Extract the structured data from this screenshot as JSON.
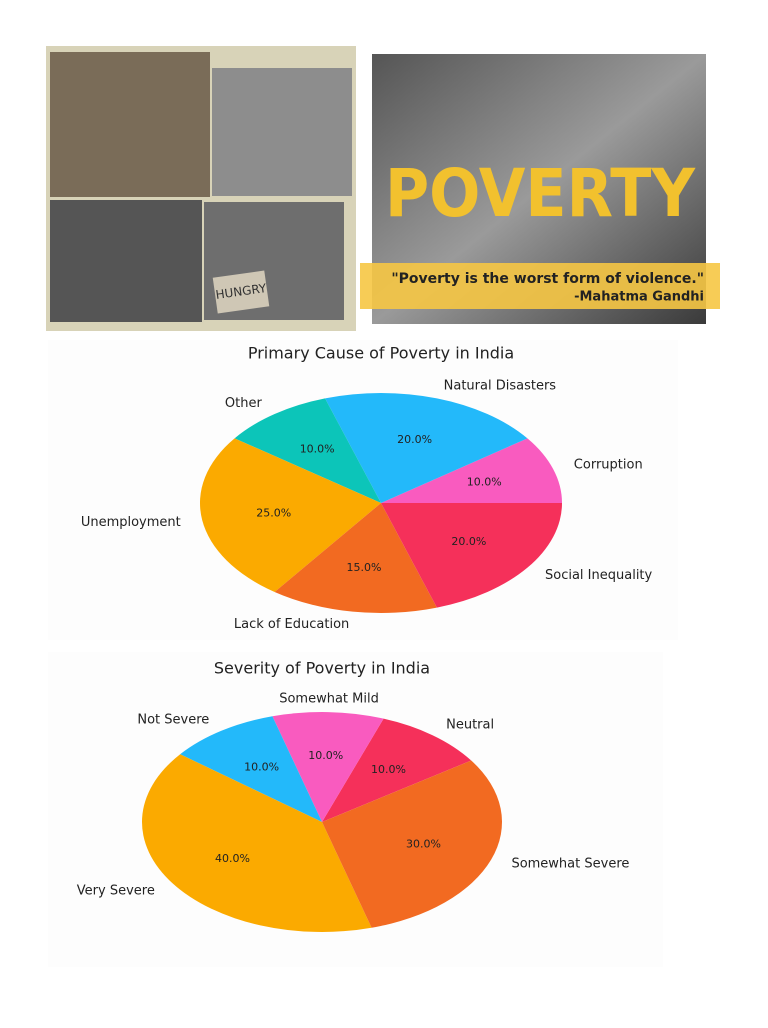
{
  "collage": {
    "sign": "HUNGRY"
  },
  "poster": {
    "title": "POVERTY",
    "quote": "\"Poverty is the worst form of violence.\"",
    "attribution": "-Mahatma Gandhi"
  },
  "chart_data": [
    {
      "type": "pie",
      "title": "Primary Cause of Poverty in India",
      "categories": [
        "Corruption",
        "Natural Disasters",
        "Other",
        "Unemployment",
        "Lack of Education",
        "Social Inequality"
      ],
      "values": [
        10,
        20,
        10,
        25,
        15,
        20
      ],
      "value_labels": [
        "10.0%",
        "20.0%",
        "10.0%",
        "25.0%",
        "15.0%",
        "20.0%"
      ],
      "colors": [
        "#f95bbf",
        "#23b9fa",
        "#0cc5b9",
        "#fbaa00",
        "#f26a21",
        "#f5305a"
      ]
    },
    {
      "type": "pie",
      "title": "Severity of Poverty in India",
      "categories": [
        "Neutral",
        "Somewhat Mild",
        "Not Severe",
        "Very Severe",
        "Somewhat Severe"
      ],
      "values": [
        10,
        10,
        10,
        40,
        30
      ],
      "value_labels": [
        "10.0%",
        "10.0%",
        "10.0%",
        "40.0%",
        "30.0%"
      ],
      "colors": [
        "#f5305a",
        "#f95bbf",
        "#23b9fa",
        "#fbaa00",
        "#f26a21"
      ]
    }
  ]
}
